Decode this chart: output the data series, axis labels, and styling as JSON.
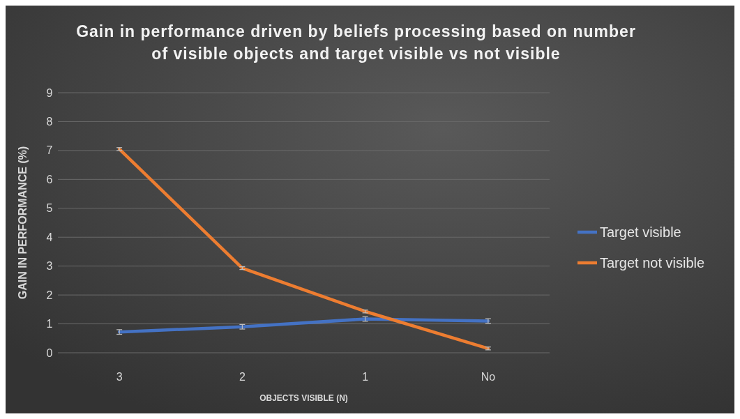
{
  "chart_data": {
    "type": "line",
    "title": "Gain in performance driven by beliefs processing based on number of visible objects and target visible vs not visible",
    "xlabel": "OBJECTS VISIBLE (N)",
    "ylabel": "GAIN IN PERFORMANCE (%)",
    "categories": [
      "3",
      "2",
      "1",
      "No"
    ],
    "series": [
      {
        "name": "Target visible",
        "color": "#4472c4",
        "values": [
          0.72,
          0.9,
          1.17,
          1.1
        ],
        "errors": [
          0.08,
          0.08,
          0.08,
          0.08
        ]
      },
      {
        "name": "Target not visible",
        "color": "#ed7d31",
        "values": [
          7.05,
          2.93,
          1.43,
          0.15
        ],
        "errors": [
          0.05,
          0.05,
          0.05,
          0.05
        ]
      }
    ],
    "ylim": [
      0,
      9
    ],
    "yticks": [
      0,
      1,
      2,
      3,
      4,
      5,
      6,
      7,
      8,
      9
    ],
    "grid": "y",
    "legend": "right",
    "marker": "none",
    "line_style": "solid"
  }
}
